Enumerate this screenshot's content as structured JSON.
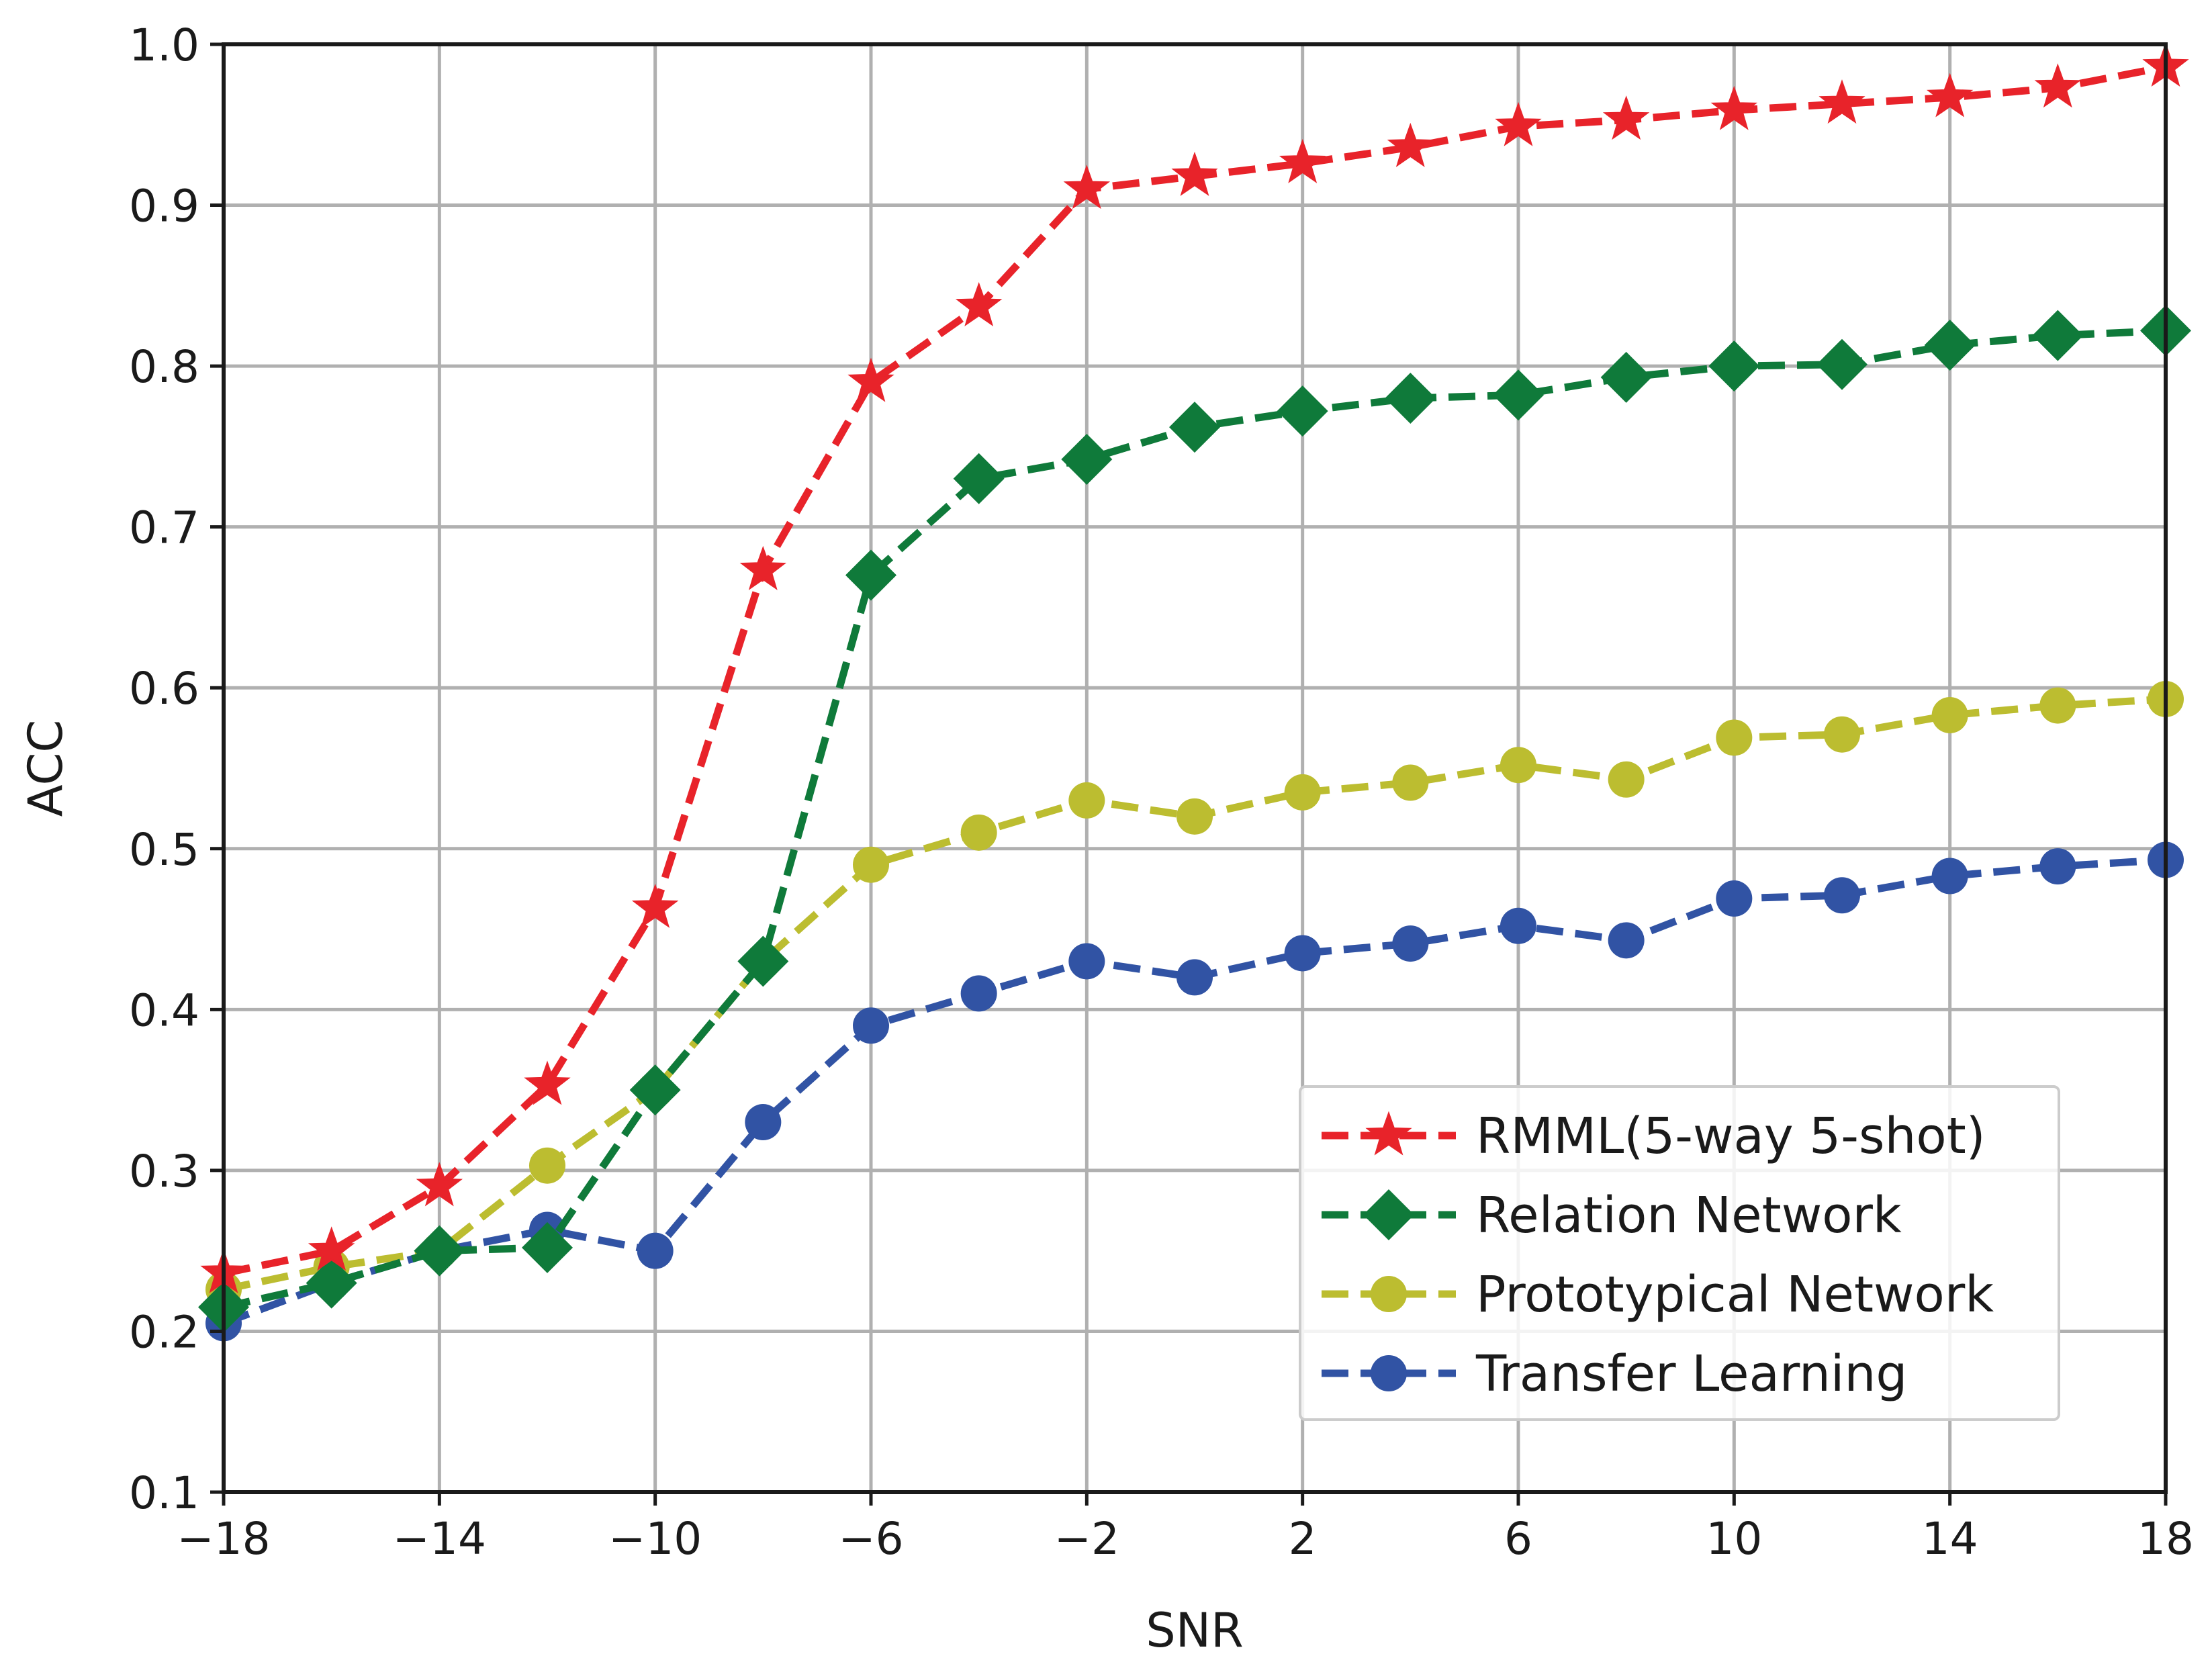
{
  "chart_data": {
    "type": "line",
    "title": "",
    "xlabel": "SNR",
    "ylabel": "ACC",
    "xlim": [
      -18,
      18
    ],
    "ylim": [
      0.1,
      1.0
    ],
    "xticks": [
      -18,
      -14,
      -10,
      -6,
      -2,
      2,
      6,
      10,
      14,
      18
    ],
    "xtick_labels": [
      "−18",
      "−14",
      "−10",
      "−6",
      "−2",
      "2",
      "6",
      "10",
      "14",
      "18"
    ],
    "yticks": [
      0.1,
      0.2,
      0.3,
      0.4,
      0.5,
      0.6,
      0.7,
      0.8,
      0.9,
      1.0
    ],
    "ytick_labels": [
      "0.1",
      "0.2",
      "0.3",
      "0.4",
      "0.5",
      "0.6",
      "0.7",
      "0.8",
      "0.9",
      "1.0"
    ],
    "grid": true,
    "legend_position": "lower-right",
    "x": [
      -18,
      -16,
      -14,
      -12,
      -10,
      -8,
      -6,
      -4,
      -2,
      0,
      2,
      4,
      6,
      8,
      10,
      12,
      14,
      16,
      18
    ],
    "series": [
      {
        "name": "RMML(5-way 5-shot)",
        "marker": "star",
        "color": "#e8232a",
        "values": [
          0.236,
          0.25,
          0.29,
          0.353,
          0.463,
          0.673,
          0.79,
          0.837,
          0.91,
          0.918,
          0.926,
          0.936,
          0.949,
          0.953,
          0.959,
          0.963,
          0.967,
          0.973,
          0.986
        ]
      },
      {
        "name": "Relation Network",
        "marker": "diamond",
        "color": "#0f7a3a",
        "values": [
          0.215,
          0.23,
          0.25,
          0.252,
          0.35,
          0.43,
          0.67,
          0.73,
          0.742,
          0.762,
          0.772,
          0.78,
          0.782,
          0.793,
          0.8,
          0.801,
          0.813,
          0.819,
          0.822
        ]
      },
      {
        "name": "Prototypical Network",
        "marker": "circle",
        "color": "#bcbd30",
        "values": [
          0.226,
          0.24,
          0.25,
          0.303,
          0.35,
          0.43,
          0.49,
          0.51,
          0.53,
          0.52,
          0.535,
          0.541,
          0.552,
          0.543,
          0.569,
          0.571,
          0.583,
          0.589,
          0.593
        ]
      },
      {
        "name": "Transfer Learning",
        "marker": "circle",
        "color": "#3153a4",
        "values": [
          0.205,
          0.23,
          0.25,
          0.263,
          0.25,
          0.33,
          0.39,
          0.41,
          0.43,
          0.42,
          0.435,
          0.441,
          0.452,
          0.443,
          0.469,
          0.471,
          0.483,
          0.489,
          0.493
        ]
      }
    ]
  }
}
